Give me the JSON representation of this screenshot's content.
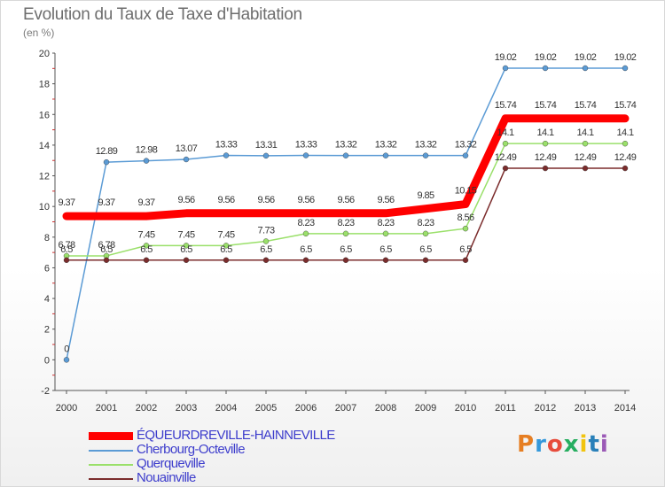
{
  "chart_data": {
    "type": "line",
    "title": "Evolution du Taux de Taxe d'Habitation",
    "subtitle": "(en %)",
    "xlabel": "",
    "ylabel": "",
    "x": [
      "2000",
      "2001",
      "2002",
      "2003",
      "2004",
      "2005",
      "2006",
      "2007",
      "2008",
      "2009",
      "2010",
      "2011",
      "2012",
      "2013",
      "2014"
    ],
    "ylim": [
      -2,
      20
    ],
    "yticks": [
      "-2",
      "0",
      "2",
      "4",
      "6",
      "8",
      "10",
      "12",
      "14",
      "16",
      "18",
      "20"
    ],
    "grid": false,
    "legend_position": "bottom-left",
    "series": [
      {
        "name": "ÉQUEURDREVILLE-HAINNEVILLE",
        "color": "#ff0000",
        "values": [
          9.37,
          9.37,
          9.37,
          9.56,
          9.56,
          9.56,
          9.56,
          9.56,
          9.56,
          9.85,
          10.15,
          15.74,
          15.74,
          15.74,
          15.74
        ],
        "labels": [
          "9.37",
          "9.37",
          "9.37",
          "9.56",
          "9.56",
          "9.56",
          "9.56",
          "9.56",
          "9.56",
          "9.85",
          "10.15",
          "15.74",
          "15.74",
          "15.74",
          "15.74"
        ]
      },
      {
        "name": "Cherbourg-Octeville",
        "color": "#5b9bd5",
        "values": [
          0,
          12.89,
          12.98,
          13.07,
          13.33,
          13.31,
          13.33,
          13.32,
          13.32,
          13.32,
          13.32,
          19.02,
          19.02,
          19.02,
          19.02
        ],
        "labels": [
          "0",
          "12.89",
          "12.98",
          "13.07",
          "13.33",
          "13.31",
          "13.33",
          "13.32",
          "13.32",
          "13.32",
          "13.32",
          "19.02",
          "19.02",
          "19.02",
          "19.02"
        ]
      },
      {
        "name": "Querqueville",
        "color": "#9ae06a",
        "values": [
          6.78,
          6.78,
          7.45,
          7.45,
          7.45,
          7.73,
          8.23,
          8.23,
          8.23,
          8.23,
          8.56,
          14.1,
          14.1,
          14.1,
          14.1
        ],
        "labels": [
          "6.78",
          "6.78",
          "7.45",
          "7.45",
          "7.45",
          "7.73",
          "8.23",
          "8.23",
          "8.23",
          "8.23",
          "8.56",
          "14.1",
          "14.1",
          "14.1",
          "14.1"
        ]
      },
      {
        "name": "Nouainville",
        "color": "#7b2c2c",
        "values": [
          6.5,
          6.5,
          6.5,
          6.5,
          6.5,
          6.5,
          6.5,
          6.5,
          6.5,
          6.5,
          6.5,
          12.49,
          12.49,
          12.49,
          12.49
        ],
        "labels": [
          "6.5",
          "6.5",
          "6.5",
          "6.5",
          "6.5",
          "6.5",
          "6.5",
          "6.5",
          "6.5",
          "6.5",
          "6.5",
          "12.49",
          "12.49",
          "12.49",
          "12.49"
        ]
      }
    ]
  },
  "logo": {
    "letters": [
      "P",
      "r",
      "o",
      "x",
      "i",
      "t",
      "i"
    ],
    "colors": [
      "#e67e22",
      "#3498db",
      "#e74c3c",
      "#27ae60",
      "#f1c40f",
      "#2980b9",
      "#9b59b6"
    ]
  }
}
